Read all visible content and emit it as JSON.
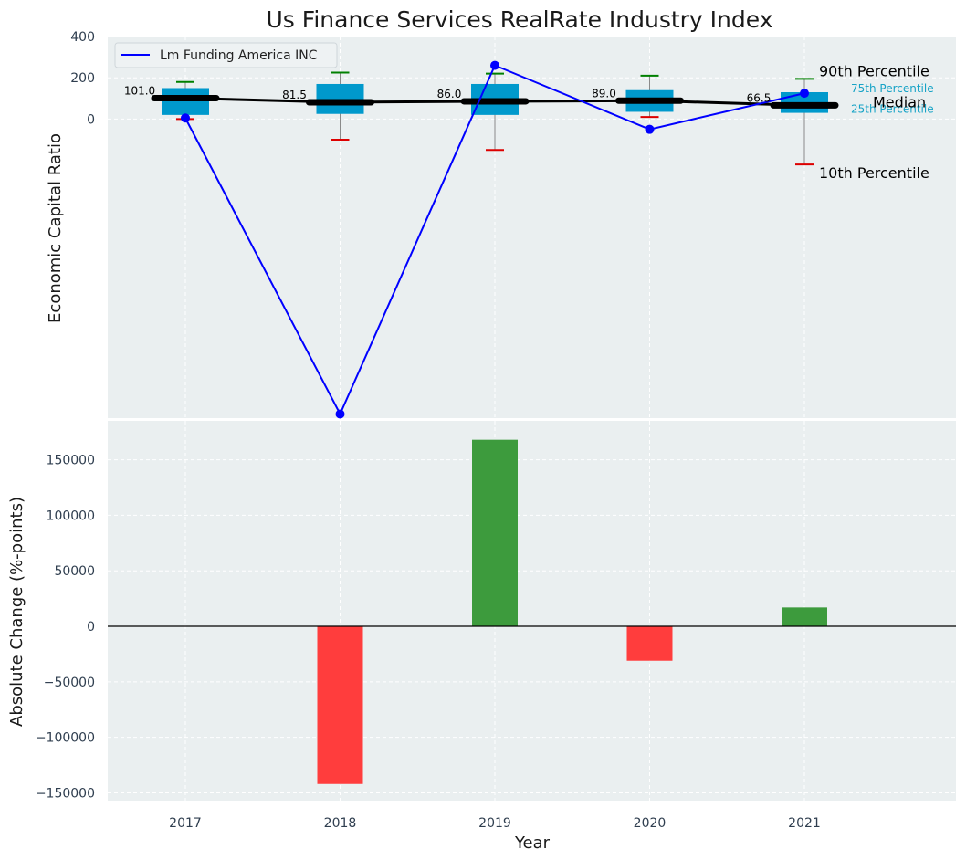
{
  "chart_data": [
    {
      "type": "box+line",
      "title": "Us Finance Services RealRate Industry Index",
      "xlabel": "",
      "ylabel": "Economic Capital Ratio",
      "categories": [
        "2017",
        "2018",
        "2019",
        "2020",
        "2021"
      ],
      "ylim": [
        -1450,
        400
      ],
      "yticks": [
        "0",
        "200",
        "400"
      ],
      "ytick_values": [
        0,
        200,
        400
      ],
      "boxes": [
        {
          "p10": 0,
          "p25": 20,
          "median": 101.0,
          "p75": 150,
          "p90": 180
        },
        {
          "p10": -100,
          "p25": 25,
          "median": 81.5,
          "p75": 170,
          "p90": 225
        },
        {
          "p10": -150,
          "p25": 20,
          "median": 86.0,
          "p75": 170,
          "p90": 220
        },
        {
          "p10": 10,
          "p25": 35,
          "median": 89.0,
          "p75": 140,
          "p90": 210
        },
        {
          "p10": -220,
          "p25": 30,
          "median": 66.5,
          "p75": 130,
          "p90": 195
        }
      ],
      "median_labels": [
        "101.0",
        "81.5",
        "86.0",
        "89.0",
        "66.5"
      ],
      "company_series": {
        "name": "Lm Funding America INC",
        "values": [
          5,
          -1430,
          260,
          -50,
          125
        ],
        "color": "#0000ff"
      },
      "median_line_color": "#000000",
      "box_color": "#0099cc",
      "annotations": {
        "p90": "90th Percentile",
        "p75": "75th Percentile",
        "median": "Median",
        "p25": "25th Percentile",
        "p10": "10th Percentile"
      },
      "legend": [
        "Lm Funding America INC"
      ]
    },
    {
      "type": "bar",
      "title": "",
      "xlabel": "Year",
      "ylabel": "Absolute Change (%-points)",
      "categories": [
        "2017",
        "2018",
        "2019",
        "2020",
        "2021"
      ],
      "values": [
        0,
        -142000,
        168000,
        -31000,
        17000
      ],
      "ylim": [
        -157000,
        185000
      ],
      "yticks": [
        "−150000",
        "−100000",
        "−50000",
        "0",
        "50000",
        "100000",
        "150000"
      ],
      "ytick_values": [
        -150000,
        -100000,
        -50000,
        0,
        50000,
        100000,
        150000
      ],
      "positive_color": "#3d9b3d",
      "negative_color": "#ff3d3d"
    }
  ]
}
